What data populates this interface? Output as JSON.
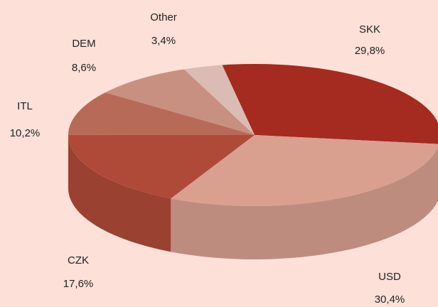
{
  "chart_data": {
    "type": "pie",
    "categories": [
      "SKK",
      "USD",
      "CZK",
      "ITL",
      "DEM",
      "Other"
    ],
    "values": [
      29.8,
      30.4,
      17.6,
      10.2,
      8.6,
      3.4
    ],
    "value_labels": [
      "29,8%",
      "30,4%",
      "17,6%",
      "10,2%",
      "8,6%",
      "3,4%"
    ],
    "colors": [
      "#a52a1f",
      "#d9a090",
      "#b04a38",
      "#b86a58",
      "#c89080",
      "#dbbcb4"
    ]
  }
}
